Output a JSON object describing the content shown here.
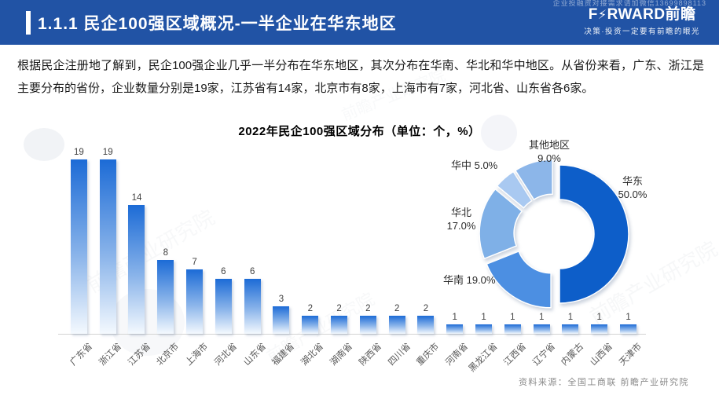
{
  "header": {
    "title": "1.1.1 民企100强区域概况-一半企业在华东地区",
    "watermark_top": "企业投融资对接需求请加微信13699898113",
    "logo": {
      "f": "F",
      "bolt": "⚡",
      "rest": "RWARD",
      "cn": "前瞻",
      "tagline": "决策·投资一定要有前瞻的眼光"
    },
    "bg_color": "#2153a5"
  },
  "body": {
    "paragraph": "根据民企注册地了解到，民企100强企业几乎一半分布在华东地区，其次分布在华南、华北和华中地区。从省份来看，广东、浙江是主要分布的省份，企业数量分别是19家，江苏省有14家，北京市有8家，上海市有7家，河北省、山东省各6家。"
  },
  "chart_data": [
    {
      "type": "bar",
      "title": "2022年民企100强区域分布（单位：个，%）",
      "categories": [
        "广东省",
        "浙江省",
        "江苏省",
        "北京市",
        "上海市",
        "河北省",
        "山东省",
        "福建省",
        "湖北省",
        "湖南省",
        "陕西省",
        "四川省",
        "重庆市",
        "河南省",
        "黑龙江省",
        "江西省",
        "辽宁省",
        "内蒙古",
        "山西省",
        "天津市"
      ],
      "values": [
        19,
        19,
        14,
        8,
        7,
        6,
        6,
        3,
        2,
        2,
        2,
        2,
        2,
        1,
        1,
        1,
        1,
        1,
        1,
        1
      ],
      "xlabel": "",
      "ylabel": "",
      "ylim": [
        0,
        20
      ],
      "grid": false,
      "bar_color_top": "#1c6bd6",
      "bar_color_mid": "#8ab4ea",
      "bar_color_bottom": "#f4f9fe"
    },
    {
      "type": "pie",
      "donut": true,
      "labels": [
        "华东",
        "华南",
        "华北",
        "华中",
        "其他地区"
      ],
      "values": [
        50.0,
        19.0,
        17.0,
        5.0,
        9.0
      ],
      "colors": [
        "#0d5ec9",
        "#4c8fe2",
        "#7fb0e7",
        "#a9c9f1",
        "#8cb6e9"
      ],
      "start_angle_deg": 0,
      "direction": "clockwise",
      "callouts": [
        {
          "id": "huadong",
          "lines": [
            "华东",
            "50.0%"
          ]
        },
        {
          "id": "huanan",
          "lines": [
            "华南 19.0%"
          ]
        },
        {
          "id": "huabei",
          "lines": [
            "华北",
            "17.0%"
          ]
        },
        {
          "id": "huazhong",
          "lines": [
            "华中 5.0%"
          ]
        },
        {
          "id": "qita",
          "lines": [
            "其他地区",
            "9.0%"
          ]
        }
      ]
    }
  ],
  "footer": {
    "source": "资料来源：全国工商联  前瞻产业研究院"
  },
  "watermark": {
    "text": "前瞻产业研究院"
  }
}
